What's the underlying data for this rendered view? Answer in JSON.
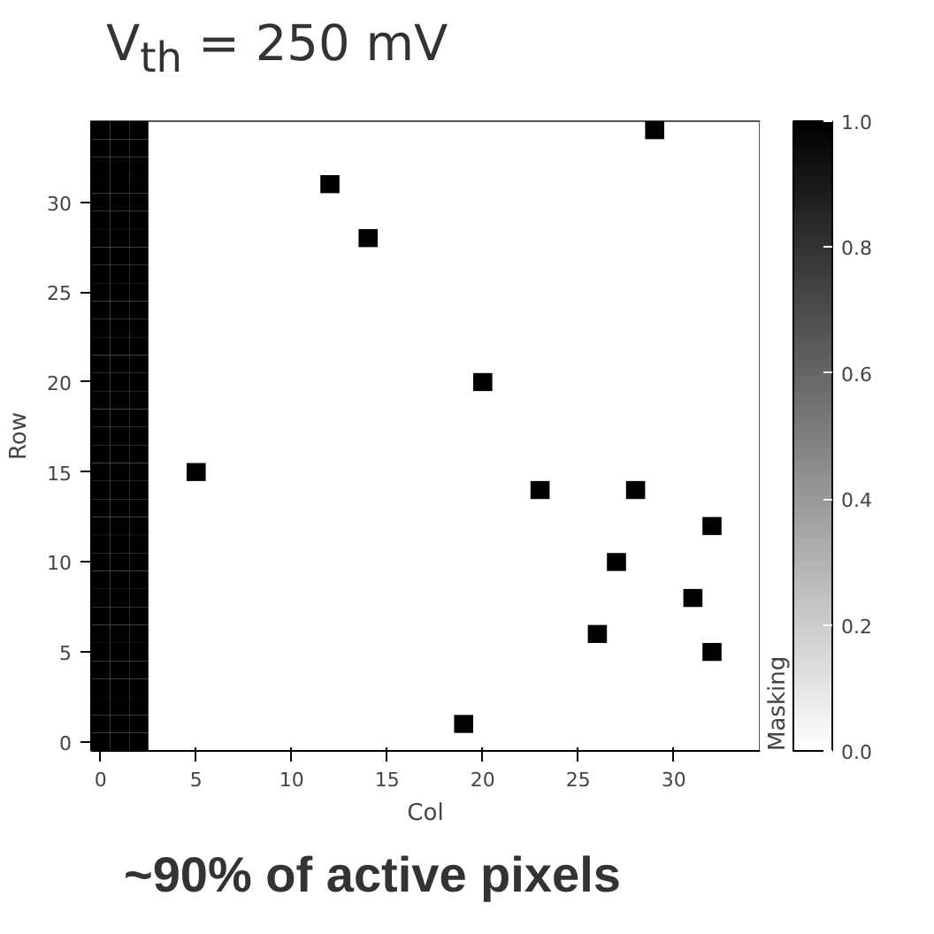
{
  "chart_data": {
    "type": "scatter",
    "title": "V$_{th}$ = 250 mV",
    "xlabel": "Col",
    "ylabel": "Row",
    "clabel": "Masking",
    "marker": "square",
    "grid": false,
    "xlim": [
      -0.5,
      34.5
    ],
    "ylim": [
      -0.5,
      34.5
    ],
    "xticks": [
      0,
      5,
      10,
      15,
      20,
      25,
      30
    ],
    "yticks": [
      0,
      5,
      10,
      15,
      20,
      25,
      30
    ],
    "clim": [
      0,
      1
    ],
    "cticks": [
      {
        "value": 0,
        "label": "0.0"
      },
      0.2,
      0.4,
      0.6,
      0.8,
      {
        "value": 1,
        "label": "1.0"
      }
    ],
    "x": [
      0,
      0,
      0,
      0,
      0,
      0,
      0,
      0,
      0,
      0,
      0,
      0,
      0,
      0,
      0,
      0,
      0,
      0,
      0,
      0,
      0,
      0,
      0,
      0,
      0,
      0,
      0,
      0,
      0,
      0,
      0,
      0,
      0,
      0,
      0,
      1,
      1,
      1,
      1,
      1,
      1,
      1,
      1,
      1,
      1,
      1,
      1,
      1,
      1,
      1,
      1,
      1,
      1,
      1,
      1,
      1,
      1,
      1,
      1,
      1,
      1,
      1,
      1,
      1,
      1,
      1,
      1,
      1,
      1,
      1,
      2,
      2,
      2,
      2,
      2,
      2,
      2,
      2,
      2,
      2,
      2,
      2,
      2,
      2,
      2,
      2,
      2,
      2,
      2,
      2,
      2,
      2,
      2,
      2,
      2,
      2,
      2,
      2,
      2,
      2,
      2,
      2,
      2,
      2,
      2,
      5,
      12,
      14,
      20,
      29,
      23,
      28,
      32,
      27,
      31,
      26,
      32,
      19
    ],
    "values": [
      0,
      1,
      2,
      3,
      4,
      5,
      6,
      7,
      8,
      9,
      10,
      11,
      12,
      13,
      14,
      15,
      16,
      17,
      18,
      19,
      20,
      21,
      22,
      23,
      24,
      25,
      26,
      27,
      28,
      29,
      30,
      31,
      32,
      33,
      34,
      0,
      1,
      2,
      3,
      4,
      5,
      6,
      7,
      8,
      9,
      10,
      11,
      12,
      13,
      14,
      15,
      16,
      17,
      18,
      19,
      20,
      21,
      22,
      23,
      24,
      25,
      26,
      27,
      28,
      29,
      30,
      31,
      32,
      33,
      34,
      0,
      1,
      2,
      3,
      4,
      5,
      6,
      7,
      8,
      9,
      10,
      11,
      12,
      13,
      14,
      15,
      16,
      17,
      18,
      19,
      20,
      21,
      22,
      23,
      24,
      25,
      26,
      27,
      28,
      29,
      30,
      31,
      32,
      33,
      34,
      15,
      31,
      28,
      20,
      34,
      14,
      14,
      12,
      10,
      8,
      6,
      5,
      1
    ],
    "cvalues": [
      1,
      1,
      1,
      1,
      1,
      1,
      1,
      1,
      1,
      1,
      1,
      1,
      1,
      1,
      1,
      1,
      1,
      1,
      1,
      1,
      1,
      1,
      1,
      1,
      1,
      1,
      1,
      1,
      1,
      1,
      1,
      1,
      1,
      1,
      1,
      1,
      1,
      1,
      1,
      1,
      1,
      1,
      1,
      1,
      1,
      1,
      1,
      1,
      1,
      1,
      1,
      1,
      1,
      1,
      1,
      1,
      1,
      1,
      1,
      1,
      1,
      1,
      1,
      1,
      1,
      1,
      1,
      1,
      1,
      1,
      1,
      1,
      1,
      1,
      1,
      1,
      1,
      1,
      1,
      1,
      1,
      1,
      1,
      1,
      1,
      1,
      1,
      1,
      1,
      1,
      1,
      1,
      1,
      1,
      1,
      1,
      1,
      1,
      1,
      1,
      1,
      1,
      1,
      1,
      1,
      1,
      1,
      1,
      1,
      1,
      1,
      1,
      1,
      1,
      1,
      1,
      1,
      1
    ],
    "annotations": [
      "~90% of active pixels"
    ]
  }
}
